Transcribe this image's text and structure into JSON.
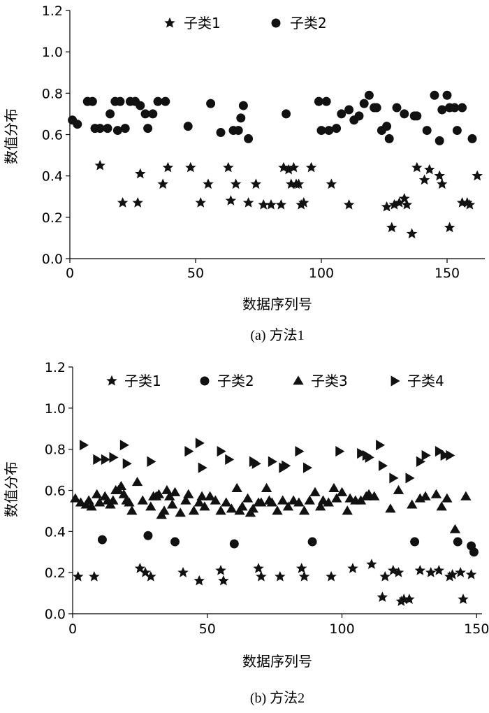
{
  "chart_data": [
    {
      "type": "scatter",
      "caption": "(a) 方法1",
      "xlabel": "数据序列号",
      "ylabel": "数值分布",
      "xlim": [
        0,
        165
      ],
      "ylim": [
        0,
        1.2
      ],
      "xticks": [
        "0",
        "50",
        "100",
        "150"
      ],
      "yticks": [
        "0.0",
        "0.2",
        "0.4",
        "0.6",
        "0.8",
        "1.0",
        "1.2"
      ],
      "xtick_values": [
        0,
        50,
        100,
        150
      ],
      "ytick_values": [
        0,
        0.2,
        0.4,
        0.6,
        0.8,
        1.0,
        1.2
      ],
      "grid": false,
      "legend": "top",
      "series": [
        {
          "name": "子类1",
          "marker": "star",
          "x": [
            12,
            21,
            27,
            28,
            37,
            39,
            48,
            52,
            55,
            63,
            64,
            66,
            71,
            74,
            77,
            80,
            84,
            85,
            87,
            88,
            89,
            90,
            91,
            92,
            93,
            96,
            104,
            111,
            126,
            128,
            129,
            131,
            133,
            134,
            136,
            138,
            141,
            143,
            147,
            148,
            151,
            156,
            158,
            159,
            162
          ],
          "y": [
            0.45,
            0.27,
            0.27,
            0.41,
            0.36,
            0.44,
            0.44,
            0.27,
            0.36,
            0.44,
            0.28,
            0.36,
            0.27,
            0.36,
            0.26,
            0.26,
            0.26,
            0.44,
            0.43,
            0.36,
            0.44,
            0.36,
            0.36,
            0.26,
            0.27,
            0.44,
            0.36,
            0.26,
            0.25,
            0.15,
            0.26,
            0.27,
            0.29,
            0.26,
            0.12,
            0.44,
            0.38,
            0.43,
            0.4,
            0.36,
            0.15,
            0.27,
            0.27,
            0.26,
            0.4
          ],
          "values_omitted_note": ""
        },
        {
          "name": "子类2",
          "marker": "circle",
          "x": [
            1,
            3,
            7,
            9,
            10,
            12,
            15,
            16,
            18,
            19,
            20,
            22,
            24,
            26,
            28,
            30,
            31,
            33,
            35,
            38,
            47,
            56,
            60,
            65,
            67,
            68,
            69,
            71,
            86,
            99,
            100,
            102,
            103,
            106,
            108,
            111,
            113,
            115,
            117,
            119,
            121,
            122,
            124,
            126,
            127,
            130,
            133,
            137,
            138,
            142,
            145,
            147,
            148,
            150,
            151,
            153,
            154,
            156,
            160
          ],
          "y": [
            0.67,
            0.65,
            0.76,
            0.76,
            0.63,
            0.63,
            0.63,
            0.7,
            0.76,
            0.62,
            0.76,
            0.63,
            0.76,
            0.76,
            0.74,
            0.7,
            0.63,
            0.7,
            0.76,
            0.76,
            0.64,
            0.75,
            0.61,
            0.62,
            0.62,
            0.68,
            0.74,
            0.58,
            0.7,
            0.76,
            0.62,
            0.76,
            0.62,
            0.63,
            0.7,
            0.72,
            0.67,
            0.69,
            0.75,
            0.79,
            0.73,
            0.73,
            0.62,
            0.64,
            0.58,
            0.73,
            0.7,
            0.69,
            0.69,
            0.62,
            0.79,
            0.57,
            0.72,
            0.79,
            0.73,
            0.73,
            0.62,
            0.73,
            0.58
          ]
        }
      ]
    },
    {
      "type": "scatter",
      "caption": "(b) 方法2",
      "xlabel": "数据序列号",
      "ylabel": "数值分布",
      "xlim": [
        0,
        152
      ],
      "ylim": [
        0,
        1.2
      ],
      "xticks": [
        "0",
        "50",
        "100",
        "150"
      ],
      "yticks": [
        "0.0",
        "0.2",
        "0.4",
        "0.6",
        "0.8",
        "1.0",
        "1.2"
      ],
      "xtick_values": [
        0,
        50,
        100,
        150
      ],
      "ytick_values": [
        0,
        0.2,
        0.4,
        0.6,
        0.8,
        1.0,
        1.2
      ],
      "grid": false,
      "legend": "top",
      "series": [
        {
          "name": "子类1",
          "marker": "star",
          "x": [
            2,
            8,
            25,
            27,
            29,
            41,
            47,
            55,
            56,
            69,
            70,
            77,
            85,
            86,
            96,
            104,
            111,
            115,
            116,
            119,
            121,
            122,
            123,
            125,
            129,
            133,
            136,
            140,
            141,
            144,
            145,
            148
          ],
          "y": [
            0.18,
            0.18,
            0.22,
            0.2,
            0.18,
            0.2,
            0.16,
            0.21,
            0.16,
            0.22,
            0.18,
            0.18,
            0.22,
            0.18,
            0.18,
            0.22,
            0.24,
            0.08,
            0.18,
            0.21,
            0.2,
            0.06,
            0.07,
            0.07,
            0.21,
            0.2,
            0.21,
            0.18,
            0.19,
            0.2,
            0.07,
            0.19
          ]
        },
        {
          "name": "子类2",
          "marker": "circle",
          "x": [
            11,
            28,
            38,
            60,
            89,
            127,
            143,
            148,
            149
          ],
          "y": [
            0.36,
            0.38,
            0.35,
            0.34,
            0.35,
            0.35,
            0.35,
            0.33,
            0.3
          ]
        },
        {
          "name": "子类3",
          "marker": "triangle-up",
          "x": [
            1,
            3,
            5,
            6,
            7,
            9,
            10,
            12,
            13,
            14,
            15,
            16,
            17,
            18,
            19,
            20,
            21,
            22,
            24,
            26,
            29,
            30,
            31,
            32,
            33,
            34,
            35,
            36,
            37,
            38,
            40,
            42,
            43,
            45,
            47,
            48,
            49,
            51,
            53,
            55,
            57,
            59,
            61,
            62,
            63,
            65,
            66,
            67,
            69,
            70,
            72,
            73,
            74,
            76,
            78,
            80,
            82,
            84,
            86,
            88,
            90,
            92,
            93,
            95,
            97,
            98,
            100,
            102,
            103,
            105,
            107,
            109,
            110,
            112,
            118,
            121,
            126,
            129,
            131,
            135,
            137,
            139,
            142,
            146
          ],
          "y": [
            0.56,
            0.54,
            0.53,
            0.55,
            0.52,
            0.58,
            0.54,
            0.57,
            0.55,
            0.53,
            0.55,
            0.6,
            0.6,
            0.62,
            0.58,
            0.55,
            0.54,
            0.5,
            0.64,
            0.55,
            0.52,
            0.57,
            0.57,
            0.58,
            0.48,
            0.5,
            0.6,
            0.57,
            0.53,
            0.59,
            0.49,
            0.55,
            0.58,
            0.5,
            0.54,
            0.57,
            0.52,
            0.57,
            0.55,
            0.5,
            0.54,
            0.51,
            0.61,
            0.5,
            0.52,
            0.56,
            0.49,
            0.51,
            0.54,
            0.54,
            0.61,
            0.55,
            0.54,
            0.5,
            0.55,
            0.52,
            0.55,
            0.54,
            0.5,
            0.55,
            0.59,
            0.52,
            0.55,
            0.54,
            0.61,
            0.56,
            0.59,
            0.5,
            0.56,
            0.55,
            0.55,
            0.57,
            0.58,
            0.57,
            0.51,
            0.6,
            0.53,
            0.56,
            0.57,
            0.58,
            0.52,
            0.56,
            0.41,
            0.57
          ]
        },
        {
          "name": "子类4",
          "marker": "triangle-right",
          "x": [
            4,
            9,
            12,
            15,
            19,
            20,
            29,
            43,
            47,
            48,
            55,
            58,
            67,
            68,
            74,
            78,
            79,
            84,
            87,
            99,
            107,
            109,
            110,
            114,
            115,
            119,
            125,
            129,
            131,
            136,
            138,
            140
          ],
          "y": [
            0.82,
            0.75,
            0.75,
            0.76,
            0.82,
            0.73,
            0.74,
            0.79,
            0.83,
            0.71,
            0.79,
            0.75,
            0.74,
            0.73,
            0.74,
            0.71,
            0.72,
            0.79,
            0.71,
            0.79,
            0.78,
            0.77,
            0.76,
            0.82,
            0.72,
            0.66,
            0.66,
            0.74,
            0.77,
            0.79,
            0.77,
            0.77
          ]
        }
      ]
    }
  ]
}
